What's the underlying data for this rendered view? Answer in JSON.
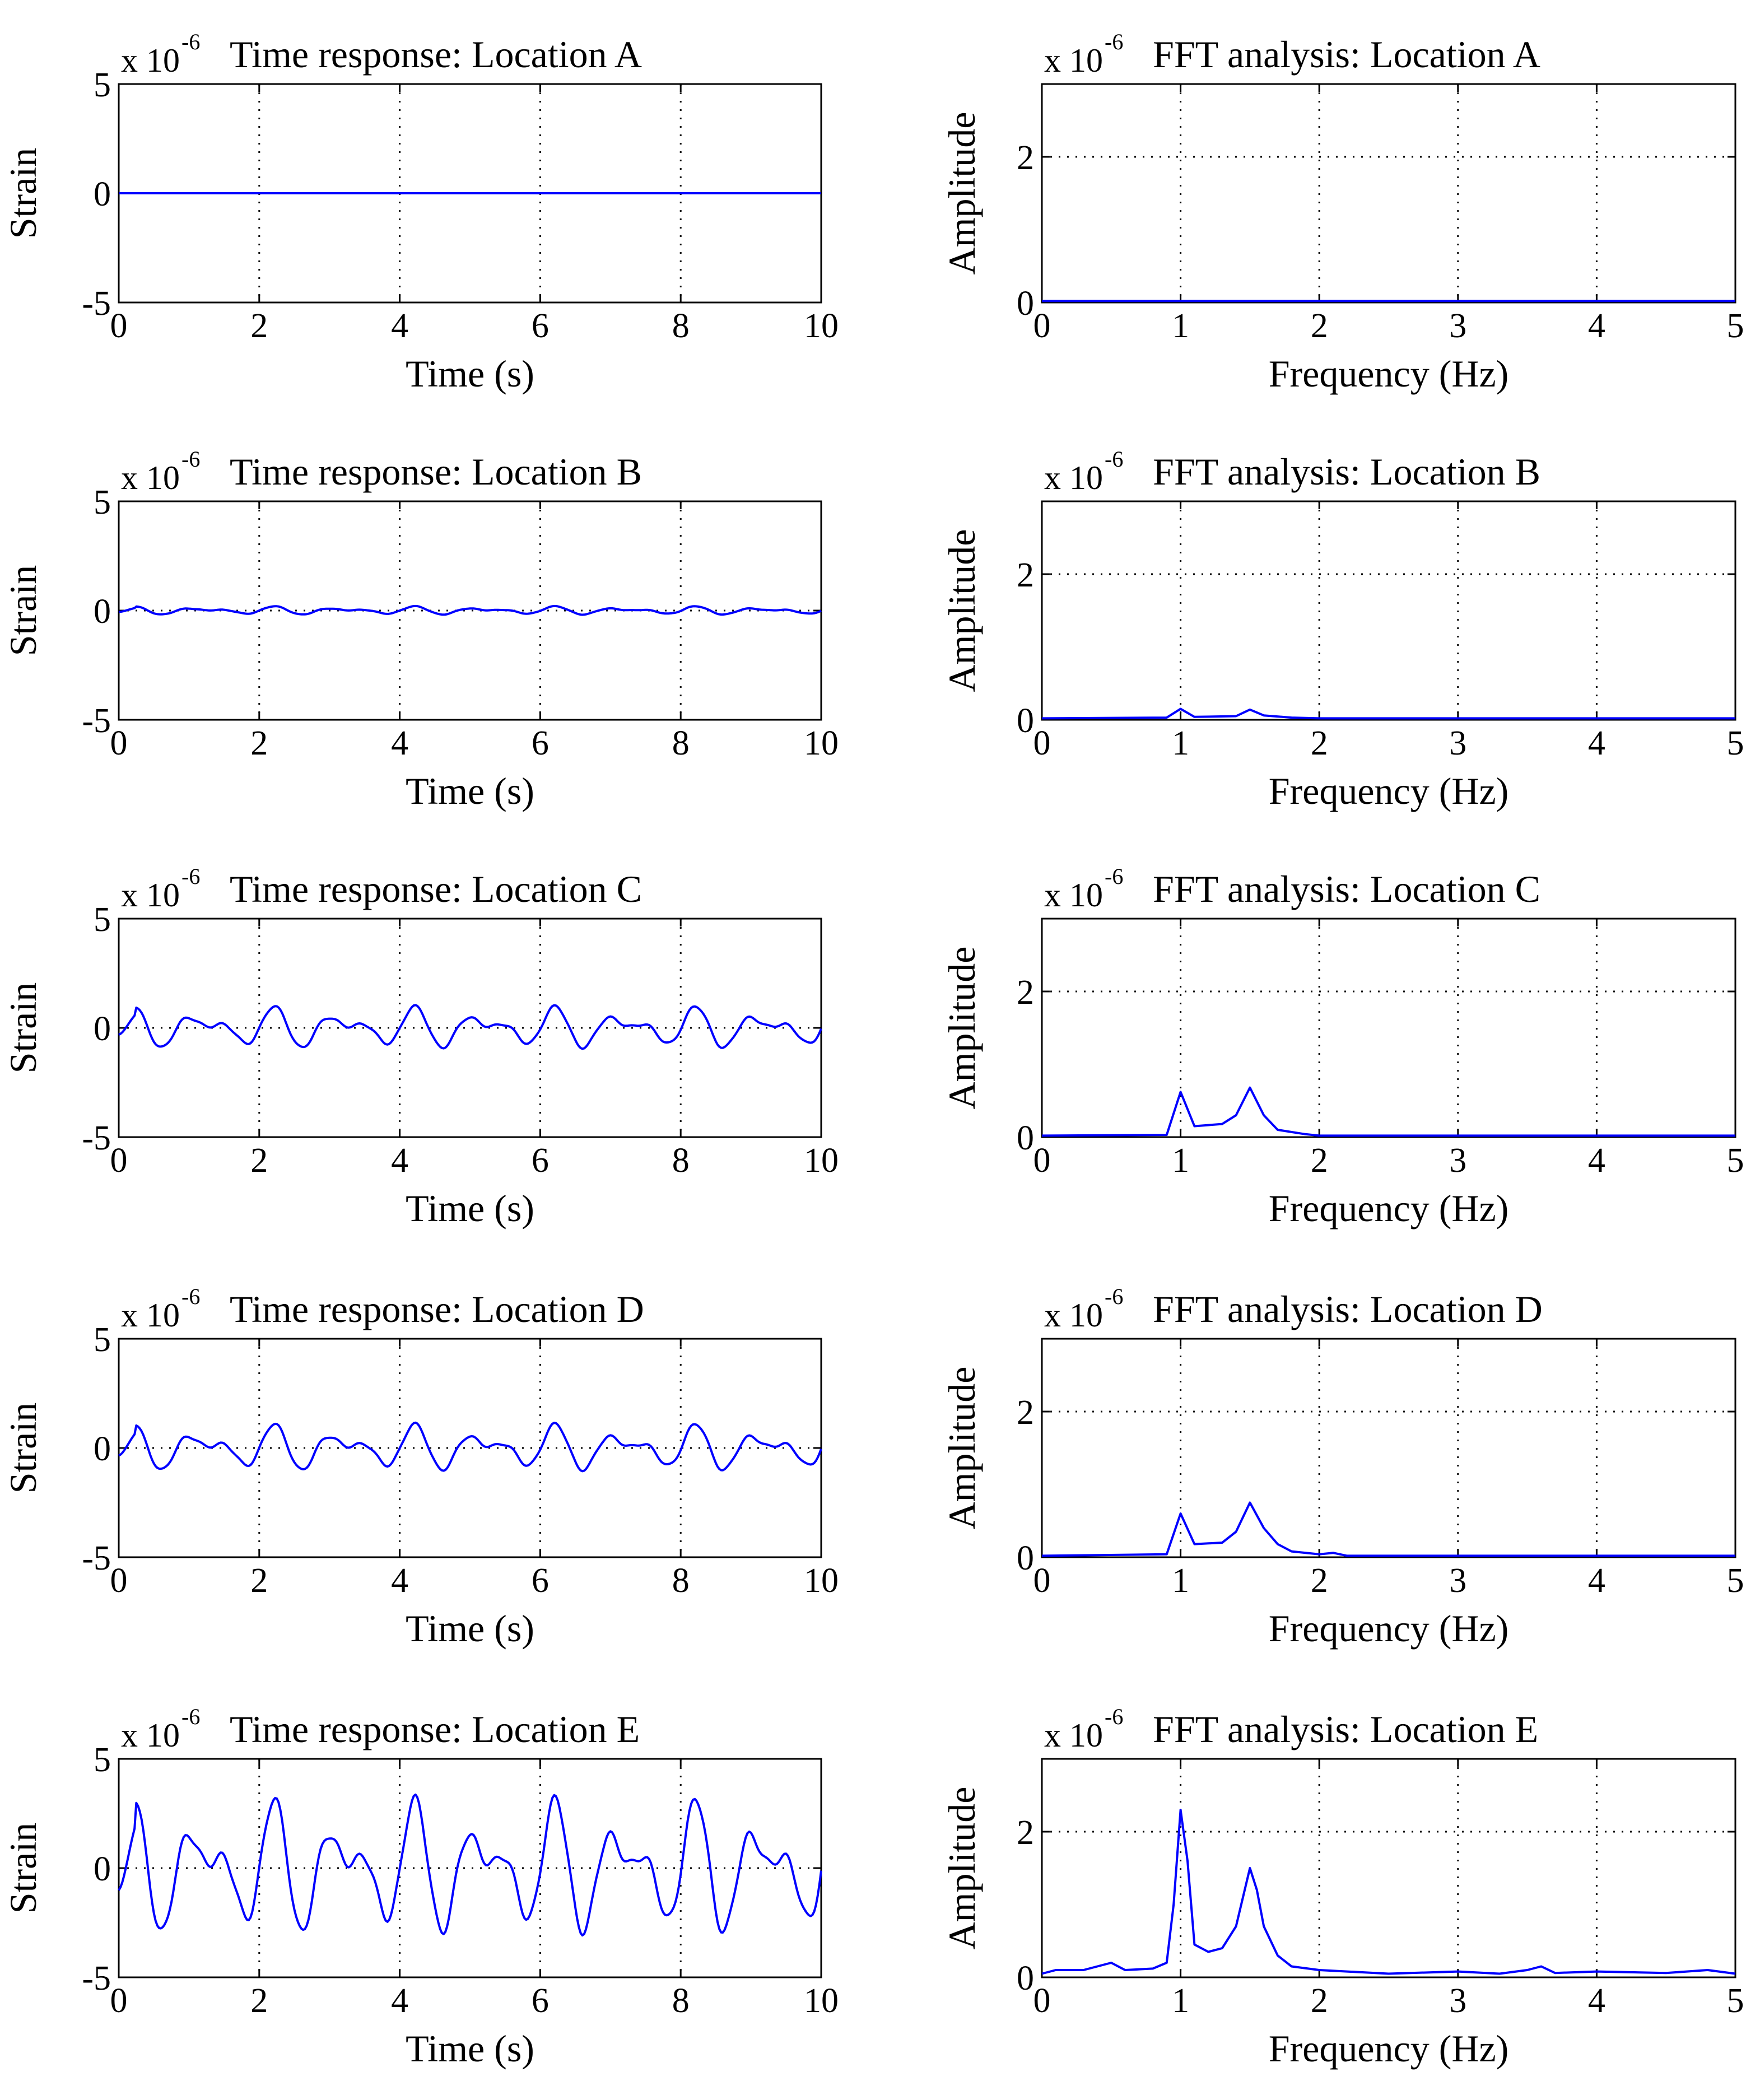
{
  "figure": {
    "background": "#ffffff",
    "line_color": "#0000ff",
    "grid_color": "#000000"
  },
  "chart_data": [
    {
      "type": "line",
      "panel_id": "time-A",
      "title": "Time response: Location A",
      "scale_text": "x 10",
      "scale_exponent": "-6",
      "xlabel": "Time (s)",
      "ylabel": "Strain",
      "xlim": [
        0,
        10
      ],
      "ylim": [
        -5,
        5
      ],
      "xticks": [
        "0",
        "2",
        "4",
        "6",
        "8",
        "10"
      ],
      "yticks": [
        "-5",
        "0",
        "5"
      ],
      "grid": true,
      "mode": "zero",
      "series": [
        {
          "name": "strain",
          "color": "#0000ff",
          "points": [
            [
              0,
              0
            ],
            [
              10,
              0
            ]
          ]
        }
      ]
    },
    {
      "type": "line",
      "panel_id": "fft-A",
      "title": "FFT analysis: Location A",
      "scale_text": "x 10",
      "scale_exponent": "-6",
      "xlabel": "Frequency (Hz)",
      "ylabel": "Amplitude",
      "xlim": [
        0,
        5
      ],
      "ylim": [
        0,
        3
      ],
      "xticks": [
        "0",
        "1",
        "2",
        "3",
        "4",
        "5"
      ],
      "yticks": [
        "0",
        "2"
      ],
      "grid": true,
      "mode": "fft",
      "series": [
        {
          "name": "amplitude",
          "color": "#0000ff",
          "points": [
            [
              0,
              0.02
            ],
            [
              5,
              0.02
            ]
          ]
        }
      ]
    },
    {
      "type": "line",
      "panel_id": "time-B",
      "title": "Time response: Location B",
      "scale_text": "x 10",
      "scale_exponent": "-6",
      "xlabel": "Time (s)",
      "ylabel": "Strain",
      "xlim": [
        0,
        10
      ],
      "ylim": [
        -5,
        5
      ],
      "xticks": [
        "0",
        "2",
        "4",
        "6",
        "8",
        "10"
      ],
      "yticks": [
        "-5",
        "0",
        "5"
      ],
      "grid": true,
      "mode": "signal",
      "signal_amplitude": 0.18,
      "series": [
        {
          "name": "strain",
          "color": "#0000ff",
          "points": []
        }
      ]
    },
    {
      "type": "line",
      "panel_id": "fft-B",
      "title": "FFT analysis: Location B",
      "scale_text": "x 10",
      "scale_exponent": "-6",
      "xlabel": "Frequency (Hz)",
      "ylabel": "Amplitude",
      "xlim": [
        0,
        5
      ],
      "ylim": [
        0,
        3
      ],
      "xticks": [
        "0",
        "1",
        "2",
        "3",
        "4",
        "5"
      ],
      "yticks": [
        "0",
        "2"
      ],
      "grid": true,
      "mode": "fft",
      "series": [
        {
          "name": "amplitude",
          "color": "#0000ff",
          "points": [
            [
              0,
              0.02
            ],
            [
              0.9,
              0.03
            ],
            [
              1.0,
              0.15
            ],
            [
              1.1,
              0.04
            ],
            [
              1.4,
              0.05
            ],
            [
              1.5,
              0.14
            ],
            [
              1.6,
              0.06
            ],
            [
              1.8,
              0.03
            ],
            [
              2.0,
              0.02
            ],
            [
              5,
              0.02
            ]
          ]
        }
      ]
    },
    {
      "type": "line",
      "panel_id": "time-C",
      "title": "Time response: Location C",
      "scale_text": "x 10",
      "scale_exponent": "-6",
      "xlabel": "Time (s)",
      "ylabel": "Strain",
      "xlim": [
        0,
        10
      ],
      "ylim": [
        -5,
        5
      ],
      "xticks": [
        "0",
        "2",
        "4",
        "6",
        "8",
        "10"
      ],
      "yticks": [
        "-5",
        "0",
        "5"
      ],
      "grid": true,
      "mode": "signal",
      "signal_amplitude": 0.9,
      "series": [
        {
          "name": "strain",
          "color": "#0000ff",
          "points": []
        }
      ]
    },
    {
      "type": "line",
      "panel_id": "fft-C",
      "title": "FFT analysis: Location C",
      "scale_text": "x 10",
      "scale_exponent": "-6",
      "xlabel": "Frequency (Hz)",
      "ylabel": "Amplitude",
      "xlim": [
        0,
        5
      ],
      "ylim": [
        0,
        3
      ],
      "xticks": [
        "0",
        "1",
        "2",
        "3",
        "4",
        "5"
      ],
      "yticks": [
        "0",
        "2"
      ],
      "grid": true,
      "mode": "fft",
      "series": [
        {
          "name": "amplitude",
          "color": "#0000ff",
          "points": [
            [
              0,
              0.02
            ],
            [
              0.9,
              0.03
            ],
            [
              1.0,
              0.62
            ],
            [
              1.1,
              0.15
            ],
            [
              1.3,
              0.18
            ],
            [
              1.4,
              0.3
            ],
            [
              1.5,
              0.68
            ],
            [
              1.6,
              0.3
            ],
            [
              1.7,
              0.1
            ],
            [
              1.9,
              0.04
            ],
            [
              2.0,
              0.02
            ],
            [
              5,
              0.02
            ]
          ]
        }
      ]
    },
    {
      "type": "line",
      "panel_id": "time-D",
      "title": "Time response: Location D",
      "scale_text": "x 10",
      "scale_exponent": "-6",
      "xlabel": "Time (s)",
      "ylabel": "Strain",
      "xlim": [
        0,
        10
      ],
      "ylim": [
        -5,
        5
      ],
      "xticks": [
        "0",
        "2",
        "4",
        "6",
        "8",
        "10"
      ],
      "yticks": [
        "-5",
        "0",
        "5"
      ],
      "grid": true,
      "mode": "signal",
      "signal_amplitude": 1.0,
      "series": [
        {
          "name": "strain",
          "color": "#0000ff",
          "points": []
        }
      ]
    },
    {
      "type": "line",
      "panel_id": "fft-D",
      "title": "FFT analysis: Location D",
      "scale_text": "x 10",
      "scale_exponent": "-6",
      "xlabel": "Frequency (Hz)",
      "ylabel": "Amplitude",
      "xlim": [
        0,
        5
      ],
      "ylim": [
        0,
        3
      ],
      "xticks": [
        "0",
        "1",
        "2",
        "3",
        "4",
        "5"
      ],
      "yticks": [
        "0",
        "2"
      ],
      "grid": true,
      "mode": "fft",
      "series": [
        {
          "name": "amplitude",
          "color": "#0000ff",
          "points": [
            [
              0,
              0.02
            ],
            [
              0.9,
              0.04
            ],
            [
              1.0,
              0.6
            ],
            [
              1.1,
              0.18
            ],
            [
              1.3,
              0.2
            ],
            [
              1.4,
              0.35
            ],
            [
              1.5,
              0.75
            ],
            [
              1.6,
              0.4
            ],
            [
              1.7,
              0.18
            ],
            [
              1.8,
              0.08
            ],
            [
              2.0,
              0.04
            ],
            [
              2.1,
              0.06
            ],
            [
              2.2,
              0.02
            ],
            [
              5,
              0.02
            ]
          ]
        }
      ]
    },
    {
      "type": "line",
      "panel_id": "time-E",
      "title": "Time response: Location E",
      "scale_text": "x 10",
      "scale_exponent": "-6",
      "xlabel": "Time (s)",
      "ylabel": "Strain",
      "xlim": [
        0,
        10
      ],
      "ylim": [
        -5,
        5
      ],
      "xticks": [
        "0",
        "2",
        "4",
        "6",
        "8",
        "10"
      ],
      "yticks": [
        "-5",
        "0",
        "5"
      ],
      "grid": true,
      "mode": "signal",
      "signal_amplitude": 2.9,
      "series": [
        {
          "name": "strain",
          "color": "#0000ff",
          "points": []
        }
      ]
    },
    {
      "type": "line",
      "panel_id": "fft-E",
      "title": "FFT analysis: Location E",
      "scale_text": "x 10",
      "scale_exponent": "-6",
      "xlabel": "Frequency (Hz)",
      "ylabel": "Amplitude",
      "xlim": [
        0,
        5
      ],
      "ylim": [
        0,
        3
      ],
      "xticks": [
        "0",
        "1",
        "2",
        "3",
        "4",
        "5"
      ],
      "yticks": [
        "0",
        "2"
      ],
      "grid": true,
      "mode": "fft",
      "series": [
        {
          "name": "amplitude",
          "color": "#0000ff",
          "points": [
            [
              0,
              0.05
            ],
            [
              0.1,
              0.1
            ],
            [
              0.3,
              0.1
            ],
            [
              0.5,
              0.2
            ],
            [
              0.6,
              0.1
            ],
            [
              0.8,
              0.12
            ],
            [
              0.9,
              0.2
            ],
            [
              0.95,
              1.0
            ],
            [
              1.0,
              2.3
            ],
            [
              1.05,
              1.6
            ],
            [
              1.1,
              0.45
            ],
            [
              1.2,
              0.35
            ],
            [
              1.3,
              0.4
            ],
            [
              1.4,
              0.7
            ],
            [
              1.45,
              1.1
            ],
            [
              1.5,
              1.5
            ],
            [
              1.55,
              1.2
            ],
            [
              1.6,
              0.7
            ],
            [
              1.7,
              0.3
            ],
            [
              1.8,
              0.15
            ],
            [
              2.0,
              0.1
            ],
            [
              2.5,
              0.05
            ],
            [
              3.0,
              0.08
            ],
            [
              3.3,
              0.05
            ],
            [
              3.5,
              0.1
            ],
            [
              3.6,
              0.15
            ],
            [
              3.7,
              0.06
            ],
            [
              4.0,
              0.08
            ],
            [
              4.5,
              0.06
            ],
            [
              4.8,
              0.1
            ],
            [
              5,
              0.05
            ]
          ]
        }
      ]
    }
  ]
}
